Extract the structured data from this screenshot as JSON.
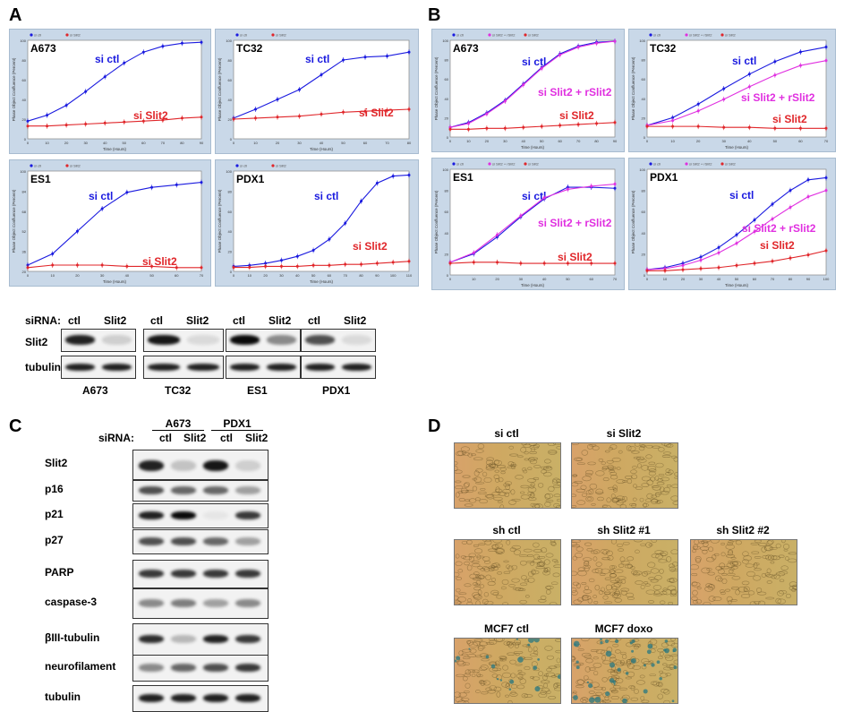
{
  "panels": {
    "A": "A",
    "B": "B",
    "C": "C",
    "D": "D"
  },
  "colors": {
    "si_ctl": "#1a1adf",
    "si_slit2": "#e0262a",
    "rescue": "#e030e0",
    "frame": "#c9d8e8"
  },
  "chart_data": [
    {
      "type": "line",
      "panel": "A",
      "title": "A673",
      "xlabel": "Time (Hours)",
      "ylabel": "Phase Object Confluence (Percent)",
      "xlim": [
        0,
        90
      ],
      "ylim": [
        0,
        100
      ],
      "series": [
        {
          "name": "si ctl",
          "x": [
            0,
            10,
            20,
            30,
            40,
            50,
            60,
            70,
            80,
            90
          ],
          "values": [
            18,
            24,
            34,
            48,
            63,
            77,
            88,
            94,
            97,
            98
          ]
        },
        {
          "name": "si Slit2",
          "x": [
            0,
            10,
            20,
            30,
            40,
            50,
            60,
            70,
            80,
            90
          ],
          "values": [
            13,
            13,
            14,
            15,
            16,
            17,
            18,
            19,
            21,
            22
          ]
        }
      ]
    },
    {
      "type": "line",
      "panel": "A",
      "title": "TC32",
      "xlabel": "Time (Hours)",
      "ylabel": "Phase Object Confluence (Percent)",
      "xlim": [
        0,
        80
      ],
      "ylim": [
        0,
        100
      ],
      "series": [
        {
          "name": "si ctl",
          "x": [
            0,
            10,
            20,
            30,
            40,
            50,
            60,
            70,
            80
          ],
          "values": [
            21,
            30,
            40,
            50,
            65,
            80,
            83,
            84,
            88
          ]
        },
        {
          "name": "si Slit2",
          "x": [
            0,
            10,
            20,
            30,
            40,
            50,
            60,
            70,
            80
          ],
          "values": [
            20,
            21,
            22,
            23,
            25,
            27,
            28,
            29,
            30
          ]
        }
      ]
    },
    {
      "type": "line",
      "panel": "A",
      "title": "ES1",
      "xlabel": "Time (Hours)",
      "ylabel": "Phase Object Confluence (Percent)",
      "xlim": [
        0,
        70
      ],
      "ylim": [
        20,
        100
      ],
      "series": [
        {
          "name": "si ctl",
          "x": [
            0,
            10,
            20,
            30,
            40,
            50,
            60,
            70
          ],
          "values": [
            25,
            34,
            52,
            70,
            83,
            87,
            89,
            91
          ]
        },
        {
          "name": "si Slit2",
          "x": [
            0,
            10,
            20,
            30,
            40,
            50,
            60,
            70
          ],
          "values": [
            23,
            25,
            25,
            25,
            24,
            24,
            23,
            23
          ]
        }
      ]
    },
    {
      "type": "line",
      "panel": "A",
      "title": "PDX1",
      "xlabel": "Time (Hours)",
      "ylabel": "Phase Object Confluence (Percent)",
      "xlim": [
        0,
        110
      ],
      "ylim": [
        0,
        100
      ],
      "series": [
        {
          "name": "si ctl",
          "x": [
            0,
            10,
            20,
            30,
            40,
            50,
            60,
            70,
            80,
            90,
            100,
            110
          ],
          "values": [
            5,
            6,
            8,
            11,
            15,
            21,
            32,
            48,
            70,
            88,
            95,
            96
          ]
        },
        {
          "name": "si Slit2",
          "x": [
            0,
            10,
            20,
            30,
            40,
            50,
            60,
            70,
            80,
            90,
            100,
            110
          ],
          "values": [
            4,
            4,
            5,
            5,
            5,
            6,
            6,
            7,
            7,
            8,
            9,
            10
          ]
        }
      ]
    },
    {
      "type": "line",
      "panel": "B",
      "title": "A673",
      "xlabel": "Time (Hours)",
      "ylabel": "Phase Object Confluence (Percent)",
      "xlim": [
        0,
        90
      ],
      "ylim": [
        0,
        100
      ],
      "series": [
        {
          "name": "si ctl",
          "x": [
            0,
            10,
            20,
            30,
            40,
            50,
            60,
            70,
            80,
            90
          ],
          "values": [
            10,
            15,
            25,
            38,
            55,
            72,
            86,
            94,
            98,
            99
          ]
        },
        {
          "name": "si Slit2 + rSlit2",
          "x": [
            0,
            10,
            20,
            30,
            40,
            50,
            60,
            70,
            80,
            90
          ],
          "values": [
            10,
            14,
            24,
            37,
            54,
            71,
            85,
            93,
            97,
            99
          ]
        },
        {
          "name": "si Slit2",
          "x": [
            0,
            10,
            20,
            30,
            40,
            50,
            60,
            70,
            80,
            90
          ],
          "values": [
            8,
            8,
            9,
            9,
            10,
            11,
            12,
            13,
            14,
            15
          ]
        }
      ]
    },
    {
      "type": "line",
      "panel": "B",
      "title": "TC32",
      "xlabel": "Time (Hours)",
      "ylabel": "Phase Object Confluence (Percent)",
      "xlim": [
        0,
        70
      ],
      "ylim": [
        0,
        100
      ],
      "series": [
        {
          "name": "si ctl",
          "x": [
            0,
            10,
            20,
            30,
            40,
            50,
            60,
            70
          ],
          "values": [
            12,
            20,
            34,
            50,
            65,
            78,
            88,
            93
          ]
        },
        {
          "name": "si Slit2 + rSlit2",
          "x": [
            0,
            10,
            20,
            30,
            40,
            50,
            60,
            70
          ],
          "values": [
            12,
            17,
            27,
            39,
            52,
            64,
            74,
            79
          ]
        },
        {
          "name": "si Slit2",
          "x": [
            0,
            10,
            20,
            30,
            40,
            50,
            60,
            70
          ],
          "values": [
            11,
            11,
            11,
            10,
            10,
            9,
            9,
            9
          ]
        }
      ]
    },
    {
      "type": "line",
      "panel": "B",
      "title": "ES1",
      "xlabel": "Time (Hours)",
      "ylabel": "Phase Object Confluence (Percent)",
      "xlim": [
        0,
        70
      ],
      "ylim": [
        0,
        100
      ],
      "series": [
        {
          "name": "si ctl",
          "x": [
            0,
            10,
            20,
            30,
            40,
            50,
            60,
            70
          ],
          "values": [
            12,
            20,
            36,
            55,
            72,
            83,
            83,
            82
          ]
        },
        {
          "name": "si Slit2 + rSlit2",
          "x": [
            0,
            10,
            20,
            30,
            40,
            50,
            60,
            70
          ],
          "values": [
            12,
            21,
            38,
            56,
            73,
            81,
            84,
            86
          ]
        },
        {
          "name": "si Slit2",
          "x": [
            0,
            10,
            20,
            30,
            40,
            50,
            60,
            70
          ],
          "values": [
            11,
            12,
            12,
            11,
            11,
            11,
            11,
            11
          ]
        }
      ]
    },
    {
      "type": "line",
      "panel": "B",
      "title": "PDX1",
      "xlabel": "Time (Hours)",
      "ylabel": "Phase Object Confluence (Percent)",
      "xlim": [
        0,
        100
      ],
      "ylim": [
        0,
        100
      ],
      "series": [
        {
          "name": "si ctl",
          "x": [
            0,
            10,
            20,
            30,
            40,
            50,
            60,
            70,
            80,
            90,
            100
          ],
          "values": [
            5,
            7,
            11,
            17,
            26,
            38,
            52,
            67,
            80,
            90,
            92
          ]
        },
        {
          "name": "si Slit2 + rSlit2",
          "x": [
            0,
            10,
            20,
            30,
            40,
            50,
            60,
            70,
            80,
            90,
            100
          ],
          "values": [
            5,
            6,
            9,
            14,
            21,
            30,
            41,
            53,
            64,
            74,
            80
          ]
        },
        {
          "name": "si Slit2",
          "x": [
            0,
            10,
            20,
            30,
            40,
            50,
            60,
            70,
            80,
            90,
            100
          ],
          "values": [
            4,
            4,
            5,
            6,
            7,
            9,
            11,
            13,
            16,
            19,
            23
          ]
        }
      ]
    }
  ],
  "blotA": {
    "header": "siRNA:",
    "lanes": [
      {
        "ctl": "ctl",
        "kd": "Slit2",
        "cell": "A673"
      },
      {
        "ctl": "ctl",
        "kd": "Slit2",
        "cell": "TC32"
      },
      {
        "ctl": "ctl",
        "kd": "Slit2",
        "cell": "ES1"
      },
      {
        "ctl": "ctl",
        "kd": "Slit2",
        "cell": "PDX1"
      }
    ],
    "rows": [
      "Slit2",
      "tubulin"
    ]
  },
  "blotC": {
    "header": "siRNA:",
    "groups": [
      "A673",
      "PDX1"
    ],
    "lanes": [
      "ctl",
      "Slit2",
      "ctl",
      "Slit2"
    ],
    "rows": [
      {
        "label": "Slit2",
        "levels": [
          0.9,
          0.2,
          0.95,
          0.15
        ]
      },
      {
        "label": "p16",
        "levels": [
          0.7,
          0.6,
          0.6,
          0.35
        ]
      },
      {
        "label": "p21",
        "levels": [
          0.9,
          1.0,
          0.05,
          0.8
        ]
      },
      {
        "label": "p27",
        "levels": [
          0.7,
          0.7,
          0.6,
          0.35
        ]
      },
      {
        "label": "PARP",
        "levels": [
          0.8,
          0.8,
          0.8,
          0.8
        ]
      },
      {
        "label": "caspase-3",
        "levels": [
          0.45,
          0.5,
          0.35,
          0.45
        ]
      },
      {
        "label": "βIII-tubulin",
        "levels": [
          0.85,
          0.25,
          0.9,
          0.8
        ]
      },
      {
        "label": "neurofilament",
        "levels": [
          0.45,
          0.6,
          0.7,
          0.8
        ]
      },
      {
        "label": "tubulin",
        "levels": [
          0.9,
          0.9,
          0.9,
          0.9
        ]
      }
    ]
  },
  "panelD": {
    "images": [
      {
        "title": "si ctl",
        "blue": false
      },
      {
        "title": "si Slit2",
        "blue": false
      },
      {
        "title": "sh ctl",
        "blue": false
      },
      {
        "title": "sh Slit2 #1",
        "blue": false
      },
      {
        "title": "sh Slit2 #2",
        "blue": false
      },
      {
        "title": "MCF7 ctl",
        "blue": true
      },
      {
        "title": "MCF7 doxo",
        "blue": true
      }
    ]
  }
}
